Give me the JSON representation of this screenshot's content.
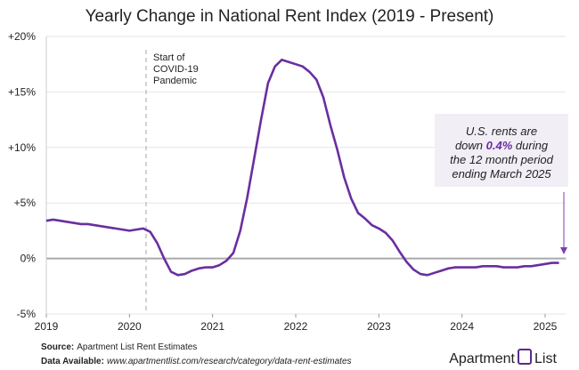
{
  "chart_data": {
    "type": "line",
    "title": "Yearly Change in National Rent Index (2019 - Present)",
    "x": [
      2019.0,
      2019.083,
      2019.167,
      2019.25,
      2019.333,
      2019.417,
      2019.5,
      2019.583,
      2019.667,
      2019.75,
      2019.833,
      2019.917,
      2020.0,
      2020.083,
      2020.167,
      2020.25,
      2020.333,
      2020.417,
      2020.5,
      2020.583,
      2020.667,
      2020.75,
      2020.833,
      2020.917,
      2021.0,
      2021.083,
      2021.167,
      2021.25,
      2021.333,
      2021.417,
      2021.5,
      2021.583,
      2021.667,
      2021.75,
      2021.833,
      2021.917,
      2022.0,
      2022.083,
      2022.167,
      2022.25,
      2022.333,
      2022.417,
      2022.5,
      2022.583,
      2022.667,
      2022.75,
      2022.833,
      2022.917,
      2023.0,
      2023.083,
      2023.167,
      2023.25,
      2023.333,
      2023.417,
      2023.5,
      2023.583,
      2023.667,
      2023.75,
      2023.833,
      2023.917,
      2024.0,
      2024.083,
      2024.167,
      2024.25,
      2024.333,
      2024.417,
      2024.5,
      2024.583,
      2024.667,
      2024.75,
      2024.833,
      2024.917,
      2025.0,
      2025.083,
      2025.167
    ],
    "series": [
      {
        "name": "National Rent Index yearly change",
        "color": "#6a2ea0",
        "values": [
          3.4,
          3.5,
          3.4,
          3.3,
          3.2,
          3.1,
          3.1,
          3.0,
          2.9,
          2.8,
          2.7,
          2.6,
          2.5,
          2.6,
          2.7,
          2.4,
          1.4,
          0.0,
          -1.2,
          -1.5,
          -1.4,
          -1.1,
          -0.9,
          -0.8,
          -0.8,
          -0.6,
          -0.2,
          0.5,
          2.5,
          5.5,
          9.0,
          12.5,
          15.8,
          17.3,
          17.9,
          17.7,
          17.5,
          17.3,
          16.8,
          16.1,
          14.5,
          12.0,
          9.8,
          7.3,
          5.4,
          4.1,
          3.6,
          3.0,
          2.7,
          2.3,
          1.6,
          0.6,
          -0.3,
          -1.0,
          -1.4,
          -1.5,
          -1.3,
          -1.1,
          -0.9,
          -0.8,
          -0.8,
          -0.8,
          -0.8,
          -0.7,
          -0.7,
          -0.7,
          -0.8,
          -0.8,
          -0.8,
          -0.7,
          -0.7,
          -0.6,
          -0.5,
          -0.4,
          -0.4
        ]
      }
    ],
    "xlim": [
      2019,
      2025.25
    ],
    "xticks": [
      2019,
      2020,
      2021,
      2022,
      2023,
      2024,
      2025
    ],
    "ylim": [
      -5,
      20
    ],
    "yticks": [
      {
        "value": -5,
        "label": "-5%"
      },
      {
        "value": 0,
        "label": "0%"
      },
      {
        "value": 5,
        "label": "+5%"
      },
      {
        "value": 10,
        "label": "+10%"
      },
      {
        "value": 15,
        "label": "+15%"
      },
      {
        "value": 20,
        "label": "+20%"
      }
    ],
    "grid": true,
    "covid_marker": {
      "x": 2020.2,
      "label": [
        "Start of",
        "COVID-19",
        "Pandemic"
      ]
    },
    "callout": {
      "lines": [
        [
          "U.S. rents are"
        ],
        [
          "down ",
          "0.4%",
          " during"
        ],
        [
          "the 12 month period"
        ],
        [
          "ending March 2025"
        ]
      ]
    },
    "source": {
      "label": "Source:",
      "text": "Apartment List Rent Estimates"
    },
    "data_available": {
      "label": "Data Available:",
      "text": "www.apartmentlist.com/research/category/data-rent-estimates"
    },
    "logo": [
      "Apartment",
      "List"
    ]
  }
}
